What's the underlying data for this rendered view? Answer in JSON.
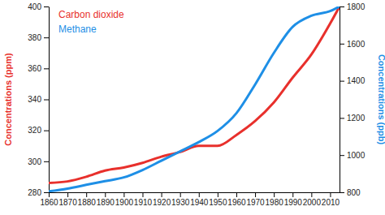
{
  "chart_data": {
    "type": "line",
    "x": [
      1860,
      1870,
      1880,
      1890,
      1900,
      1910,
      1920,
      1930,
      1940,
      1950,
      1960,
      1970,
      1980,
      1990,
      2000,
      2010,
      2015
    ],
    "series": [
      {
        "name": "Carbon dioxide",
        "color": "#e8302c",
        "axis": "y",
        "values": [
          286,
          287,
          290,
          294,
          296,
          299,
          303,
          306,
          310,
          310,
          317,
          326,
          338,
          354,
          369,
          389,
          400
        ]
      },
      {
        "name": "Methane",
        "color": "#1e8fe6",
        "axis": "y2",
        "values": [
          805,
          820,
          840,
          860,
          880,
          920,
          970,
          1020,
          1070,
          1130,
          1225,
          1380,
          1550,
          1690,
          1750,
          1775,
          1800
        ]
      }
    ],
    "xlim": [
      1860,
      2015
    ],
    "xticks": [
      1860,
      1870,
      1880,
      1890,
      1900,
      1910,
      1920,
      1930,
      1940,
      1950,
      1960,
      1970,
      1980,
      1990,
      2000,
      2010
    ],
    "ylim": [
      280,
      400
    ],
    "yticks": [
      280,
      300,
      320,
      340,
      360,
      380,
      400
    ],
    "y2lim": [
      800,
      1800
    ],
    "y2ticks": [
      800,
      1000,
      1200,
      1400,
      1600,
      1800
    ],
    "y_label": "Concentrations (ppm)",
    "y2_label": "Concentrations (ppb)",
    "legend": "upper left",
    "grid": false
  }
}
